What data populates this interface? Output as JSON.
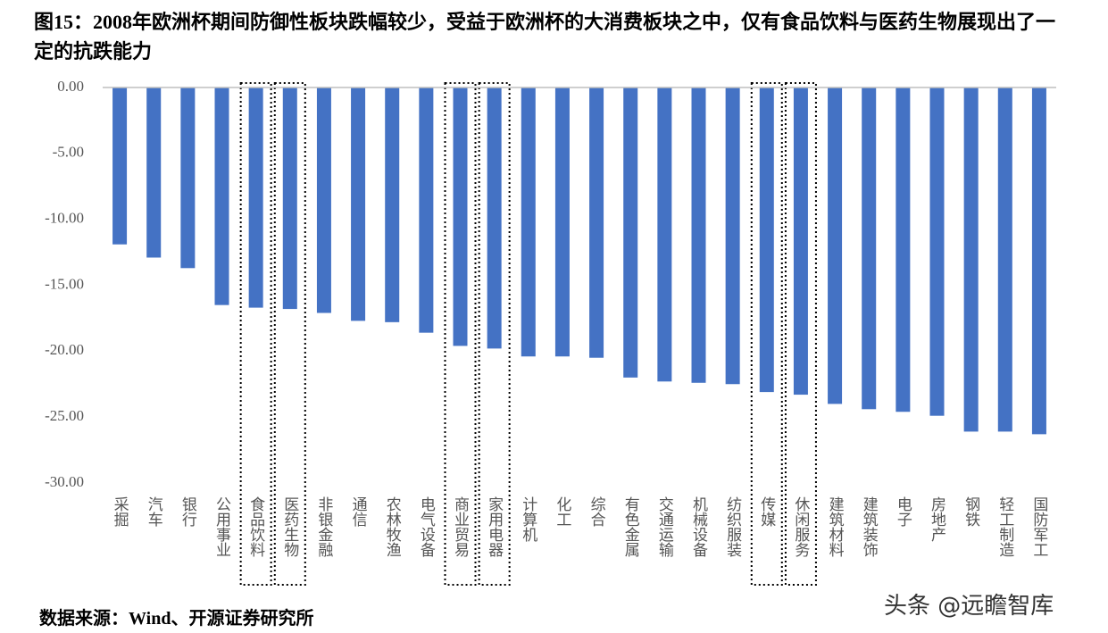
{
  "chart_data": {
    "type": "bar",
    "title": "图15：2008年欧洲杯期间防御性板块跌幅较少，受益于欧洲杯的大消费板块之中，仅有食品饮料与医药生物展现出了一定的抗跌能力",
    "source": "数据来源：Wind、开源证券研究所",
    "watermark": "头条 @远瞻智库",
    "categories": [
      "采掘",
      "汽车",
      "银行",
      "公用事业",
      "食品饮料",
      "医药生物",
      "非银金融",
      "通信",
      "农林牧渔",
      "电气设备",
      "商业贸易",
      "家用电器",
      "计算机",
      "化工",
      "综合",
      "有色金属",
      "交通运输",
      "机械设备",
      "纺织服装",
      "传媒",
      "休闲服务",
      "建筑材料",
      "建筑装饰",
      "电子",
      "房地产",
      "钢铁",
      "轻工制造",
      "国防军工"
    ],
    "values": [
      -11.9,
      -12.9,
      -13.7,
      -16.5,
      -16.7,
      -16.8,
      -17.1,
      -17.7,
      -17.8,
      -18.6,
      -19.6,
      -19.8,
      -20.4,
      -20.4,
      -20.5,
      -22.0,
      -22.3,
      -22.4,
      -22.5,
      -23.1,
      -23.3,
      -24.0,
      -24.4,
      -24.6,
      -24.9,
      -26.1,
      -26.1,
      -26.3
    ],
    "color": "#4472c4",
    "highlighted_categories": [
      4,
      5,
      10,
      11,
      19,
      20
    ],
    "ylim": [
      -30,
      0
    ],
    "yticks": [
      {
        "value": 0,
        "label": "0.00"
      },
      {
        "value": -5,
        "label": "-5.00"
      },
      {
        "value": -10,
        "label": "-10.00"
      },
      {
        "value": -15,
        "label": "-15.00"
      },
      {
        "value": -20,
        "label": "-20.00"
      },
      {
        "value": -25,
        "label": "-25.00"
      },
      {
        "value": -30,
        "label": "-30.00"
      }
    ],
    "grid": false
  }
}
